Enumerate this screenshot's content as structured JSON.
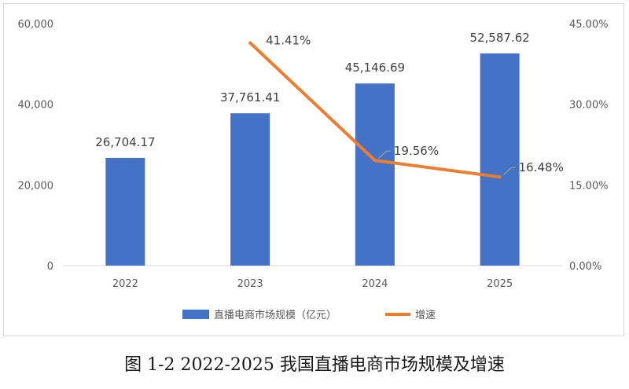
{
  "chart_data": {
    "type": "bar",
    "categories": [
      "2022",
      "2023",
      "2024",
      "2025"
    ],
    "series": [
      {
        "name": "直播电商市场规模（亿元）",
        "type": "bar",
        "axis": "left",
        "color": "#4472c4",
        "values": [
          26704.17,
          37761.41,
          45146.69,
          52587.62
        ],
        "labels": [
          "26,704.17",
          "37,761.41",
          "45,146.69",
          "52,587.62"
        ]
      },
      {
        "name": "增速",
        "type": "line",
        "axis": "right",
        "color": "#ed7d31",
        "values": [
          null,
          41.41,
          19.56,
          16.48
        ],
        "labels": [
          "",
          "41.41%",
          "19.56%",
          "16.48%"
        ]
      }
    ],
    "y_left": {
      "lim": [
        0,
        60000
      ],
      "ticks": [
        "0",
        "20,000",
        "40,000",
        "60,000"
      ]
    },
    "y_right": {
      "lim": [
        0,
        45
      ],
      "ticks": [
        "0.00%",
        "15.00%",
        "30.00%",
        "45.00%"
      ]
    },
    "legend_position": "bottom",
    "grid": false
  },
  "caption": "图 1-2 2022-2025 我国直播电商市场规模及增速"
}
